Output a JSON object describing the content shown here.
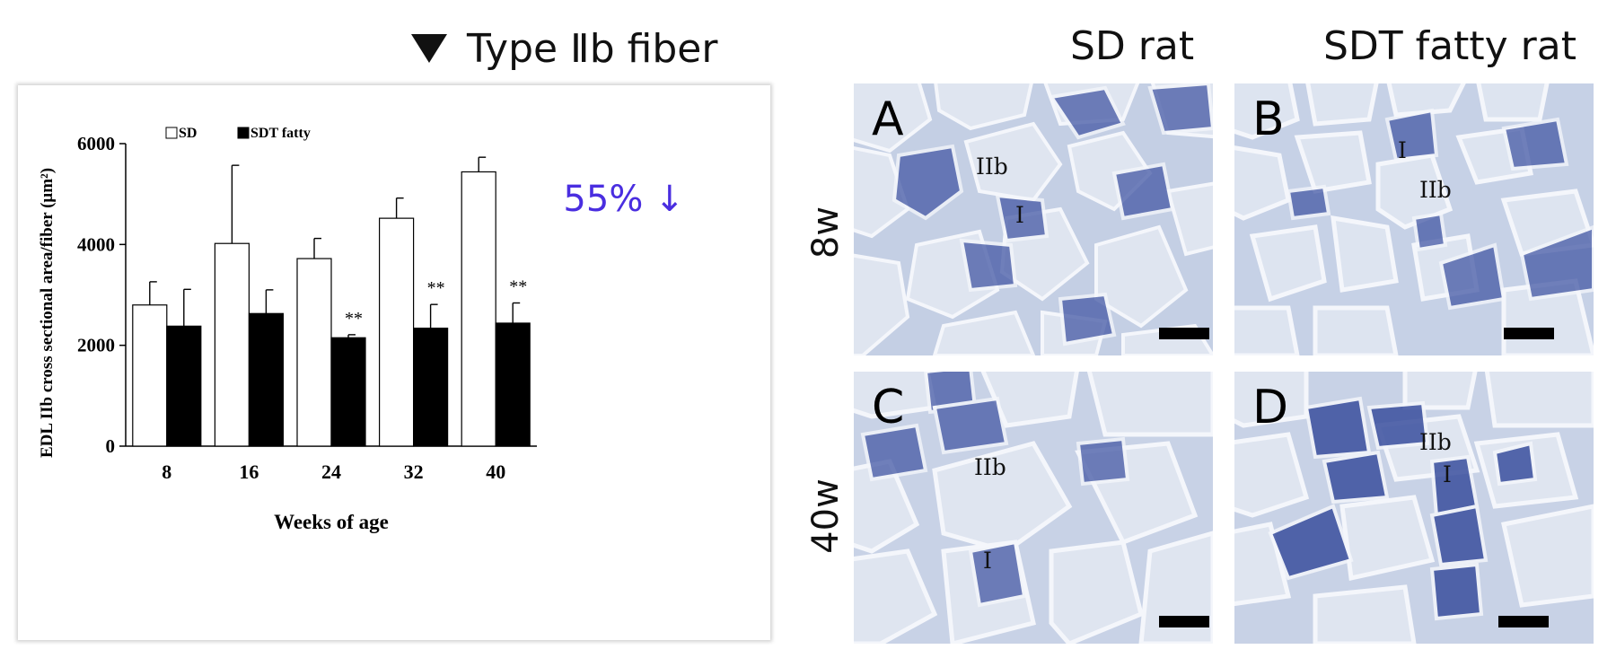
{
  "heading": {
    "symbol": "▼",
    "text": "Type Ⅱb fiber"
  },
  "annotation": {
    "text": "55% ↓",
    "color": "#4a2ee0"
  },
  "chart_data": {
    "type": "bar",
    "xlabel": "Weeks of age",
    "ylabel": "EDL IIb cross sectional area/fiber (μm²)",
    "categories": [
      "8",
      "16",
      "24",
      "32",
      "40"
    ],
    "ylim": [
      0,
      6000
    ],
    "yticks": [
      "0",
      "2000",
      "4000",
      "6000"
    ],
    "legend_position": "top-left",
    "series": [
      {
        "name": "SD",
        "fill": "#ffffff",
        "values": [
          2800,
          4020,
          3720,
          4520,
          5440
        ],
        "errors": [
          460,
          1550,
          400,
          400,
          290
        ]
      },
      {
        "name": "SDT fatty",
        "fill": "#000000",
        "values": [
          2380,
          2630,
          2150,
          2340,
          2440
        ],
        "errors": [
          730,
          470,
          60,
          470,
          400
        ]
      }
    ],
    "significance": [
      "",
      "",
      "**",
      "**",
      "**"
    ]
  },
  "micrographs": {
    "column_titles": [
      "SD rat",
      "SDT fatty rat"
    ],
    "row_labels": [
      "8w",
      "40w"
    ],
    "panels": [
      {
        "letter": "A",
        "labels": [
          "IIb",
          "I"
        ]
      },
      {
        "letter": "B",
        "labels": [
          "I",
          "IIb"
        ]
      },
      {
        "letter": "C",
        "labels": [
          "IIb",
          "I"
        ]
      },
      {
        "letter": "D",
        "labels": [
          "IIb",
          "I"
        ]
      }
    ]
  }
}
